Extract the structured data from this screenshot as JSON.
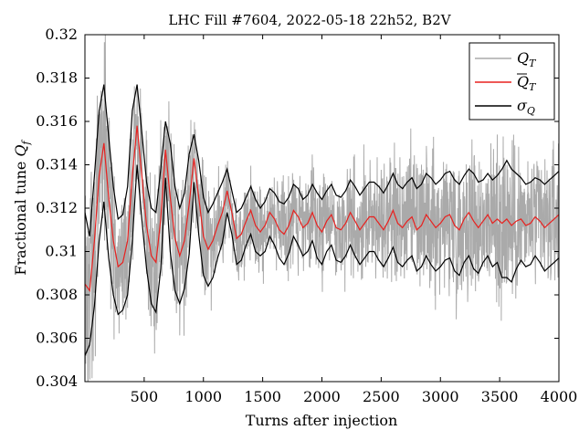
{
  "chart_data": {
    "type": "line",
    "title": "LHC Fill #7604, 2022-05-18 22h52, B2V",
    "xlabel": "Turns after injection",
    "ylabel": "Fractional tune Q_f",
    "xlim": [
      0,
      4000
    ],
    "ylim": [
      0.304,
      0.32
    ],
    "x_ticks": [
      500,
      1000,
      1500,
      2000,
      2500,
      3000,
      3500,
      4000
    ],
    "y_ticks": [
      0.304,
      0.306,
      0.308,
      0.31,
      0.312,
      0.314,
      0.316,
      0.318,
      0.32
    ],
    "grid": false,
    "legend_position": "top-right",
    "legend": [
      "Q_T",
      "Q̄_T",
      "σ_Q"
    ],
    "mean_x": [
      0,
      40,
      80,
      120,
      160,
      200,
      240,
      280,
      320,
      360,
      400,
      440,
      480,
      520,
      560,
      600,
      640,
      680,
      720,
      760,
      800,
      840,
      880,
      920,
      960,
      1000,
      1040,
      1080,
      1120,
      1160,
      1200,
      1240,
      1280,
      1320,
      1360,
      1400,
      1440,
      1480,
      1520,
      1560,
      1600,
      1640,
      1680,
      1720,
      1760,
      1800,
      1840,
      1880,
      1920,
      1960,
      2000,
      2040,
      2080,
      2120,
      2160,
      2200,
      2240,
      2280,
      2320,
      2360,
      2400,
      2440,
      2480,
      2520,
      2560,
      2600,
      2640,
      2680,
      2720,
      2760,
      2800,
      2840,
      2880,
      2920,
      2960,
      3000,
      3040,
      3080,
      3120,
      3160,
      3200,
      3240,
      3280,
      3320,
      3360,
      3400,
      3440,
      3480,
      3520,
      3560,
      3600,
      3640,
      3680,
      3720,
      3760,
      3800,
      3840,
      3880,
      3920,
      3960,
      4000
    ],
    "series": [
      {
        "name": "Q_T",
        "color": "#aaaaaa",
        "values_note": "dense per-turn noise around mean, amplitude scaled with σ_Q"
      },
      {
        "name": "Q̄_T",
        "color": "#e8211f",
        "values": [
          0.3085,
          0.3082,
          0.3105,
          0.3135,
          0.315,
          0.3125,
          0.3105,
          0.3093,
          0.3095,
          0.3105,
          0.3135,
          0.3158,
          0.3135,
          0.3112,
          0.3098,
          0.3095,
          0.3115,
          0.3147,
          0.3125,
          0.3106,
          0.3098,
          0.3105,
          0.3122,
          0.3143,
          0.3125,
          0.3107,
          0.3101,
          0.3105,
          0.3112,
          0.3118,
          0.3128,
          0.3118,
          0.3106,
          0.3108,
          0.3114,
          0.3119,
          0.3112,
          0.3109,
          0.3112,
          0.3118,
          0.3115,
          0.311,
          0.3108,
          0.3112,
          0.3119,
          0.3116,
          0.3111,
          0.3113,
          0.3118,
          0.3112,
          0.3109,
          0.3114,
          0.3117,
          0.3111,
          0.311,
          0.3113,
          0.3118,
          0.3114,
          0.311,
          0.3113,
          0.3116,
          0.3116,
          0.3113,
          0.311,
          0.3114,
          0.3119,
          0.3113,
          0.3111,
          0.3114,
          0.3116,
          0.311,
          0.3112,
          0.3117,
          0.3114,
          0.3111,
          0.3113,
          0.3116,
          0.3117,
          0.3112,
          0.311,
          0.3115,
          0.3118,
          0.3114,
          0.3111,
          0.3114,
          0.3117,
          0.3113,
          0.3115,
          0.3113,
          0.3115,
          0.3112,
          0.3114,
          0.3115,
          0.3112,
          0.3113,
          0.3116,
          0.3114,
          0.3111,
          0.3113,
          0.3115,
          0.3117
        ]
      },
      {
        "name": "σ_Q",
        "color": "#000000",
        "upper": [
          0.3118,
          0.3107,
          0.3135,
          0.3165,
          0.3177,
          0.3153,
          0.313,
          0.3115,
          0.3117,
          0.313,
          0.3165,
          0.3177,
          0.3155,
          0.3132,
          0.312,
          0.3118,
          0.3138,
          0.316,
          0.315,
          0.313,
          0.312,
          0.3127,
          0.3145,
          0.3154,
          0.3142,
          0.3125,
          0.3118,
          0.3122,
          0.3127,
          0.3132,
          0.3138,
          0.3128,
          0.3118,
          0.312,
          0.3125,
          0.313,
          0.3124,
          0.312,
          0.3123,
          0.3129,
          0.3127,
          0.3123,
          0.3122,
          0.3125,
          0.3131,
          0.3129,
          0.3124,
          0.3126,
          0.3131,
          0.3127,
          0.3124,
          0.3128,
          0.3131,
          0.3126,
          0.3125,
          0.3128,
          0.3133,
          0.313,
          0.3126,
          0.3129,
          0.3132,
          0.3132,
          0.313,
          0.3127,
          0.3131,
          0.3136,
          0.3131,
          0.3129,
          0.3132,
          0.3134,
          0.3129,
          0.3131,
          0.3136,
          0.3134,
          0.3131,
          0.3133,
          0.3136,
          0.3137,
          0.3133,
          0.3131,
          0.3135,
          0.3138,
          0.3136,
          0.3132,
          0.3133,
          0.3136,
          0.3133,
          0.3135,
          0.3138,
          0.3142,
          0.3138,
          0.3136,
          0.3134,
          0.3131,
          0.3132,
          0.3134,
          0.3133,
          0.3131,
          0.3133,
          0.3135,
          0.3137
        ],
        "lower": [
          0.3052,
          0.3057,
          0.3075,
          0.3105,
          0.3123,
          0.3097,
          0.308,
          0.3071,
          0.3073,
          0.308,
          0.3105,
          0.314,
          0.3115,
          0.3092,
          0.3076,
          0.3072,
          0.3092,
          0.3134,
          0.31,
          0.3082,
          0.3076,
          0.3083,
          0.3099,
          0.3132,
          0.3108,
          0.3089,
          0.3084,
          0.3088,
          0.3097,
          0.3104,
          0.3118,
          0.3108,
          0.3094,
          0.3096,
          0.3103,
          0.3108,
          0.31,
          0.3098,
          0.31,
          0.3107,
          0.3103,
          0.3097,
          0.3094,
          0.3099,
          0.3107,
          0.3103,
          0.3098,
          0.31,
          0.3105,
          0.3097,
          0.3094,
          0.31,
          0.3103,
          0.3096,
          0.3095,
          0.3098,
          0.3103,
          0.3098,
          0.3094,
          0.3097,
          0.31,
          0.31,
          0.3096,
          0.3093,
          0.3097,
          0.3102,
          0.3095,
          0.3093,
          0.3096,
          0.3098,
          0.3091,
          0.3093,
          0.3098,
          0.3094,
          0.3091,
          0.3093,
          0.3096,
          0.3097,
          0.3091,
          0.3089,
          0.3095,
          0.3098,
          0.3092,
          0.309,
          0.3095,
          0.3098,
          0.3093,
          0.3095,
          0.3088,
          0.3088,
          0.3086,
          0.3092,
          0.3096,
          0.3093,
          0.3094,
          0.3098,
          0.3095,
          0.3091,
          0.3093,
          0.3095,
          0.3097
        ]
      }
    ]
  }
}
